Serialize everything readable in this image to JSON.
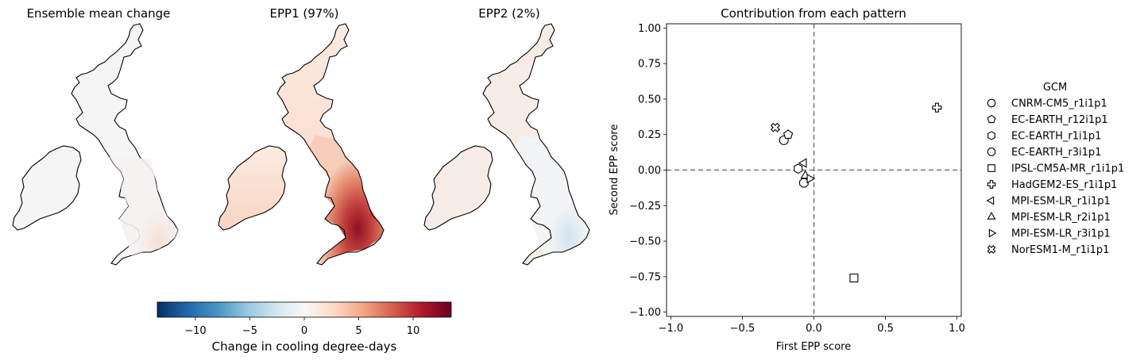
{
  "maps": {
    "titles": [
      "Ensemble mean change",
      "EPP1 (97%)",
      "EPP2 (2%)"
    ]
  },
  "colorbar": {
    "label": "Change in cooling degree-days",
    "ticks": [
      -10,
      -5,
      0,
      5,
      10
    ],
    "tick_labels": [
      "−10",
      "−5",
      "0",
      "5",
      "10"
    ],
    "range": [
      -13.5,
      13.5
    ],
    "colormap": "RdBu_r",
    "stops": [
      "#053061",
      "#2166ac",
      "#4393c3",
      "#92c5de",
      "#d1e5f0",
      "#f7f7f7",
      "#fddbc7",
      "#f4a582",
      "#d6604d",
      "#b2182b",
      "#67001f"
    ]
  },
  "chart_data": {
    "type": "scatter",
    "title": "Contribution from each pattern",
    "xlabel": "First EPP score",
    "ylabel": "Second EPP score",
    "xlim": [
      -1.03,
      1.03
    ],
    "ylim": [
      -1.03,
      1.03
    ],
    "xticks": [
      -1.0,
      -0.5,
      0.0,
      0.5,
      1.0
    ],
    "xtick_labels": [
      "−1.0",
      "−0.5",
      "0.0",
      "0.5",
      "1.0"
    ],
    "yticks": [
      1.0,
      0.75,
      0.5,
      0.25,
      0.0,
      -0.25,
      -0.5,
      -0.75,
      -1.0
    ],
    "ytick_labels": [
      "1.00",
      "0.75",
      "0.50",
      "0.25",
      "0.00",
      "−0.25",
      "−0.50",
      "−0.75",
      "−1.00"
    ],
    "reference_lines": {
      "x": 0,
      "y": 0,
      "style": "dashed",
      "color": "#777777"
    },
    "legend": {
      "title": "GCM",
      "placement": "outside-right"
    },
    "series": [
      {
        "name": "CNRM-CM5_r1i1p1",
        "marker": "circle",
        "x": -0.21,
        "y": 0.21
      },
      {
        "name": "EC-EARTH_r12i1p1",
        "marker": "pentagon",
        "x": -0.18,
        "y": 0.25
      },
      {
        "name": "EC-EARTH_r1i1p1",
        "marker": "hexagon",
        "x": -0.11,
        "y": 0.01
      },
      {
        "name": "EC-EARTH_r3i1p1",
        "marker": "octagon",
        "x": -0.07,
        "y": -0.09
      },
      {
        "name": "IPSL-CM5A-MR_r1i1p1",
        "marker": "square",
        "x": 0.28,
        "y": -0.76
      },
      {
        "name": "HadGEM2-ES_r1i1p1",
        "marker": "plus",
        "x": 0.86,
        "y": 0.44
      },
      {
        "name": "MPI-ESM-LR_r1i1p1",
        "marker": "triangle-left",
        "x": -0.07,
        "y": 0.05
      },
      {
        "name": "MPI-ESM-LR_r2i1p1",
        "marker": "triangle-up",
        "x": -0.06,
        "y": -0.04
      },
      {
        "name": "MPI-ESM-LR_r3i1p1",
        "marker": "triangle-right",
        "x": -0.03,
        "y": -0.06
      },
      {
        "name": "NorESM1-M_r1i1p1",
        "marker": "x-filled",
        "x": -0.27,
        "y": 0.3
      }
    ]
  }
}
